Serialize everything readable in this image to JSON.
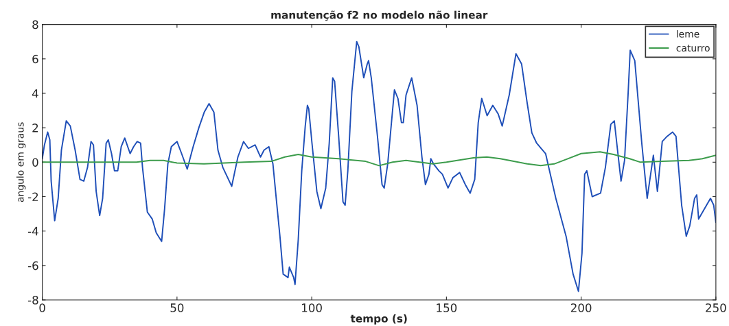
{
  "chart_data": {
    "type": "line",
    "title": "manutenção f2 no modelo não linear",
    "xlabel": "tempo (s)",
    "ylabel": "angulo em graus",
    "xlim": [
      0,
      250
    ],
    "xticks": [
      0,
      50,
      100,
      150,
      200,
      250
    ],
    "ylim": [
      -8,
      8
    ],
    "yticks": [
      -8,
      -6,
      -4,
      -2,
      0,
      2,
      4,
      6,
      8
    ],
    "grid": false,
    "legend": "top right",
    "line_style": "solid",
    "marker": "none",
    "series": [
      {
        "name": "leme",
        "color": "#1f4fb8",
        "x": [
          0,
          0.8,
          2,
          2.8,
          3.3,
          4.6,
          5.9,
          7.1,
          8.9,
          10.4,
          12.2,
          14,
          15.4,
          16.8,
          18.1,
          19,
          20,
          21.3,
          22.4,
          23.7,
          24.5,
          25.7,
          26.8,
          28,
          29.3,
          30.6,
          32.6,
          33.9,
          35.2,
          36.5,
          37.2,
          39,
          40.8,
          42.3,
          44.3,
          45.4,
          46.6,
          47.9,
          50,
          51.7,
          53.8,
          56,
          58.1,
          60.1,
          61.9,
          63.7,
          65.2,
          67,
          70.3,
          72.6,
          74.7,
          76.5,
          79,
          81,
          82.3,
          84.1,
          85.6,
          87.2,
          88.2,
          89.4,
          91.2,
          91.7,
          93.3,
          93.8,
          95,
          96.3,
          97.6,
          98.4,
          98.9,
          100.1,
          101.9,
          103.4,
          105.2,
          106.5,
          107.8,
          108.5,
          110,
          111.6,
          112.4,
          113.4,
          114.9,
          116.7,
          117.5,
          119.3,
          120.6,
          121.1,
          122.1,
          124.4,
          126.1,
          126.9,
          128.2,
          130.7,
          132,
          133.3,
          134,
          135,
          137.1,
          139.1,
          140.9,
          142.2,
          143.5,
          144.2,
          145.2,
          147.2,
          148.5,
          150.6,
          152.4,
          154.9,
          157,
          158.8,
          160.5,
          161.8,
          163.1,
          165.1,
          167.2,
          169.2,
          170.7,
          173.3,
          175.8,
          177.9,
          179.9,
          181.7,
          183.5,
          186.8,
          190.6,
          194.4,
          197,
          199,
          200.3,
          201.3,
          202.1,
          204.1,
          207.2,
          209,
          211,
          212.3,
          213.5,
          214.8,
          216.1,
          217.4,
          218.2,
          219.9,
          222.5,
          224.5,
          226.8,
          228.3,
          230.1,
          231.9,
          233.9,
          235.2,
          237.3,
          239,
          240.3,
          242.1,
          242.9,
          243.6,
          248,
          249.2,
          250
        ],
        "values": [
          0.2,
          1.0,
          1.75,
          1.3,
          -1.1,
          -3.4,
          -2.1,
          0.7,
          2.4,
          2.1,
          0.7,
          -1,
          -1.1,
          -0.3,
          1.2,
          1.0,
          -1.7,
          -3.1,
          -2.1,
          1.1,
          1.3,
          0.5,
          -0.5,
          -0.5,
          0.9,
          1.4,
          0.5,
          0.9,
          1.2,
          1.1,
          -0.3,
          -2.9,
          -3.3,
          -4.1,
          -4.6,
          -2.7,
          -0.1,
          0.9,
          1.2,
          0.5,
          -0.4,
          0.9,
          2.0,
          2.9,
          3.4,
          2.9,
          0.7,
          -0.3,
          -1.4,
          0.3,
          1.2,
          0.8,
          1.0,
          0.3,
          0.7,
          0.9,
          -0.1,
          -2.7,
          -4.3,
          -6.5,
          -6.7,
          -6.1,
          -6.7,
          -7.1,
          -4.5,
          -0.5,
          2.1,
          3.3,
          3.1,
          1.1,
          -1.7,
          -2.7,
          -1.5,
          1.1,
          4.9,
          4.7,
          1.5,
          -2.3,
          -2.5,
          -0.5,
          4.1,
          7.0,
          6.7,
          4.9,
          5.7,
          5.9,
          4.9,
          1.5,
          -1.3,
          -1.5,
          -0.1,
          4.2,
          3.7,
          2.3,
          2.3,
          3.9,
          4.9,
          3.3,
          0.3,
          -1.3,
          -0.7,
          0.2,
          -0.1,
          -0.5,
          -0.7,
          -1.5,
          -0.9,
          -0.6,
          -1.3,
          -1.8,
          -1.0,
          2.3,
          3.7,
          2.7,
          3.3,
          2.8,
          2.1,
          3.9,
          6.3,
          5.7,
          3.5,
          1.7,
          1.1,
          0.5,
          -2.1,
          -4.3,
          -6.5,
          -7.5,
          -5.3,
          -0.7,
          -0.5,
          -2.0,
          -1.8,
          -0.3,
          2.2,
          2.4,
          0.7,
          -1.1,
          0.1,
          3.9,
          6.5,
          5.9,
          1.1,
          -2.1,
          0.4,
          -1.7,
          1.2,
          1.5,
          1.75,
          1.5,
          -2.5,
          -4.3,
          -3.7,
          -2.1,
          -1.9,
          -3.3,
          -2.1,
          -2.5,
          -3.5
        ]
      },
      {
        "name": "caturro",
        "color": "#3c9c4c",
        "x": [
          0,
          20,
          35,
          40,
          45,
          50,
          60,
          75,
          85,
          90,
          95,
          100,
          110,
          120,
          125,
          130,
          135,
          145,
          150,
          160,
          165,
          170,
          175,
          180,
          185,
          190,
          195,
          200,
          207,
          212,
          218,
          222,
          230,
          240,
          245,
          250
        ],
        "values": [
          0,
          0,
          0,
          0.1,
          0.1,
          -0.05,
          -0.1,
          0,
          0.05,
          0.3,
          0.45,
          0.3,
          0.2,
          0.05,
          -0.2,
          0,
          0.1,
          -0.1,
          0,
          0.25,
          0.3,
          0.2,
          0.05,
          -0.1,
          -0.2,
          -0.1,
          0.2,
          0.5,
          0.6,
          0.45,
          0.2,
          0,
          0.05,
          0.1,
          0.2,
          0.4
        ]
      }
    ]
  }
}
